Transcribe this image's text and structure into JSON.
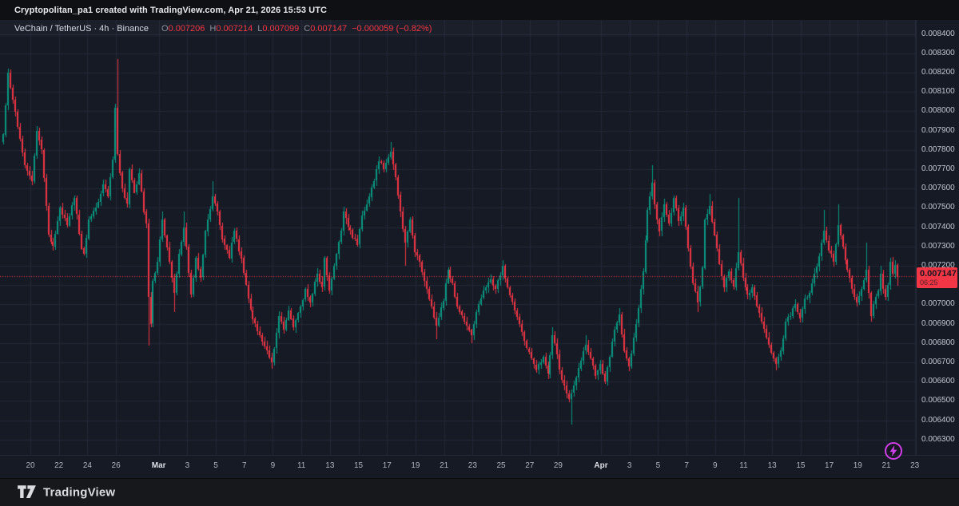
{
  "watermark": {
    "text": "Cryptopolitan_pa1 created with TradingView.com, Apr 21, 2026 15:53 UTC"
  },
  "legend": {
    "title": "VeChain / TetherUS · 4h · Binance",
    "ohlc": [
      [
        "O",
        "0.007206"
      ],
      [
        "H",
        "0.007214"
      ],
      [
        "L",
        "0.007099"
      ],
      [
        "C",
        "0.007147"
      ]
    ],
    "change": "−0.000059 (−0.82%)"
  },
  "price_tag": {
    "price": "0.007147",
    "countdown": "06:25"
  },
  "footer": {
    "brand": "TradingView"
  },
  "icons": {
    "event_marker": "lightning-bolt-icon",
    "brand_mark": "tradingview-logo"
  },
  "colors": {
    "background": "#161a25",
    "top_bar": "#0e1014",
    "footer_bar": "#17181c",
    "grid": "#222736",
    "up": "#089981",
    "down": "#f23645",
    "axis_text": "#c3c7d0",
    "event": "#cf3fe8"
  },
  "chart_data": {
    "type": "candlestick",
    "symbol": "VeChain / TetherUS",
    "interval": "4h",
    "exchange": "Binance",
    "current_candle": {
      "o": 0.007206,
      "h": 0.007214,
      "l": 0.007099,
      "c": 0.007147
    },
    "change_text": "−0.000059 (−0.82%)",
    "last_price": 0.007147,
    "countdown": "06:25",
    "candles_per_day": 6,
    "total_candles": 377,
    "ylim": [
      0.006221,
      0.008473
    ],
    "y_tick_step": 0.0001,
    "y_tick_labels": [
      "0.008400",
      "0.008300",
      "0.008200",
      "0.008100",
      "0.008000",
      "0.007900",
      "0.007800",
      "0.007700",
      "0.007600",
      "0.007500",
      "0.007400",
      "0.007300",
      "0.007200",
      "0.007100",
      "0.007000",
      "0.006900",
      "0.006800",
      "0.006700",
      "0.006600",
      "0.006500",
      "0.006400",
      "0.006300"
    ],
    "x_ticks": [
      {
        "label": "20",
        "day": 2
      },
      {
        "label": "22",
        "day": 4
      },
      {
        "label": "24",
        "day": 6
      },
      {
        "label": "26",
        "day": 8
      },
      {
        "label": "Mar",
        "day": 11
      },
      {
        "label": "3",
        "day": 13
      },
      {
        "label": "5",
        "day": 15
      },
      {
        "label": "7",
        "day": 17
      },
      {
        "label": "9",
        "day": 19
      },
      {
        "label": "11",
        "day": 21
      },
      {
        "label": "13",
        "day": 23
      },
      {
        "label": "15",
        "day": 25
      },
      {
        "label": "17",
        "day": 27
      },
      {
        "label": "19",
        "day": 29
      },
      {
        "label": "21",
        "day": 31
      },
      {
        "label": "23",
        "day": 33
      },
      {
        "label": "25",
        "day": 35
      },
      {
        "label": "27",
        "day": 37
      },
      {
        "label": "29",
        "day": 39
      },
      {
        "label": "Apr",
        "day": 42
      },
      {
        "label": "3",
        "day": 44
      },
      {
        "label": "5",
        "day": 46
      },
      {
        "label": "7",
        "day": 48
      },
      {
        "label": "9",
        "day": 50
      },
      {
        "label": "11",
        "day": 52
      },
      {
        "label": "13",
        "day": 54
      },
      {
        "label": "15",
        "day": 56
      },
      {
        "label": "17",
        "day": 58
      },
      {
        "label": "19",
        "day": 60
      },
      {
        "label": "21",
        "day": 62
      },
      {
        "label": "23",
        "day": 64
      }
    ],
    "close_keyframes": [
      [
        0,
        0.00788
      ],
      [
        2,
        0.0082
      ],
      [
        4,
        0.00806
      ],
      [
        6,
        0.00792
      ],
      [
        9,
        0.00772
      ],
      [
        12,
        0.00764
      ],
      [
        14,
        0.0079
      ],
      [
        16,
        0.0078
      ],
      [
        19,
        0.00736
      ],
      [
        21,
        0.0073
      ],
      [
        24,
        0.0075
      ],
      [
        27,
        0.00741
      ],
      [
        30,
        0.00755
      ],
      [
        33,
        0.00729
      ],
      [
        34,
        0.00726
      ],
      [
        36,
        0.00744
      ],
      [
        40,
        0.00753
      ],
      [
        42,
        0.00762
      ],
      [
        44,
        0.00756
      ],
      [
        46,
        0.00775
      ],
      [
        47,
        0.00802
      ],
      [
        48,
        0.00778
      ],
      [
        50,
        0.0076
      ],
      [
        52,
        0.00752
      ],
      [
        53,
        0.0077
      ],
      [
        55,
        0.00758
      ],
      [
        57,
        0.00768
      ],
      [
        59,
        0.00748
      ],
      [
        60,
        0.00742
      ],
      [
        61,
        0.00704
      ],
      [
        62,
        0.0069
      ],
      [
        63,
        0.00712
      ],
      [
        65,
        0.00722
      ],
      [
        67,
        0.00744
      ],
      [
        70,
        0.00722
      ],
      [
        72,
        0.00706
      ],
      [
        74,
        0.00726
      ],
      [
        76,
        0.0074
      ],
      [
        77,
        0.0073
      ],
      [
        79,
        0.00705
      ],
      [
        81,
        0.00724
      ],
      [
        83,
        0.00714
      ],
      [
        85,
        0.00738
      ],
      [
        88,
        0.00756
      ],
      [
        90,
        0.00748
      ],
      [
        92,
        0.00734
      ],
      [
        95,
        0.00724
      ],
      [
        97,
        0.00738
      ],
      [
        100,
        0.00724
      ],
      [
        102,
        0.0071
      ],
      [
        104,
        0.00697
      ],
      [
        106,
        0.0069
      ],
      [
        108,
        0.00684
      ],
      [
        111,
        0.00676
      ],
      [
        113,
        0.0067
      ],
      [
        116,
        0.00694
      ],
      [
        118,
        0.00687
      ],
      [
        120,
        0.00697
      ],
      [
        122,
        0.00688
      ],
      [
        125,
        0.00699
      ],
      [
        127,
        0.00708
      ],
      [
        129,
        0.00701
      ],
      [
        132,
        0.00716
      ],
      [
        134,
        0.00709
      ],
      [
        135,
        0.00724
      ],
      [
        137,
        0.00707
      ],
      [
        140,
        0.00726
      ],
      [
        142,
        0.00738
      ],
      [
        143,
        0.00748
      ],
      [
        145,
        0.0074
      ],
      [
        149,
        0.00731
      ],
      [
        151,
        0.00746
      ],
      [
        153,
        0.00752
      ],
      [
        156,
        0.00764
      ],
      [
        158,
        0.00774
      ],
      [
        160,
        0.0077
      ],
      [
        163,
        0.00779
      ],
      [
        165,
        0.00766
      ],
      [
        167,
        0.00748
      ],
      [
        169,
        0.00732
      ],
      [
        171,
        0.00744
      ],
      [
        173,
        0.00727
      ],
      [
        175,
        0.00722
      ],
      [
        177,
        0.00712
      ],
      [
        180,
        0.00699
      ],
      [
        182,
        0.00689
      ],
      [
        185,
        0.00702
      ],
      [
        187,
        0.00718
      ],
      [
        189,
        0.00711
      ],
      [
        191,
        0.00699
      ],
      [
        194,
        0.00691
      ],
      [
        197,
        0.00684
      ],
      [
        199,
        0.00696
      ],
      [
        202,
        0.00707
      ],
      [
        205,
        0.00713
      ],
      [
        207,
        0.00708
      ],
      [
        210,
        0.0072
      ],
      [
        212,
        0.00709
      ],
      [
        215,
        0.00697
      ],
      [
        217,
        0.0069
      ],
      [
        219,
        0.00681
      ],
      [
        222,
        0.00672
      ],
      [
        224,
        0.00666
      ],
      [
        227,
        0.00673
      ],
      [
        229,
        0.00664
      ],
      [
        231,
        0.00684
      ],
      [
        233,
        0.00674
      ],
      [
        234,
        0.00666
      ],
      [
        236,
        0.00658
      ],
      [
        238,
        0.00651
      ],
      [
        239,
        0.00654
      ],
      [
        241,
        0.00662
      ],
      [
        243,
        0.00671
      ],
      [
        245,
        0.00679
      ],
      [
        247,
        0.00672
      ],
      [
        249,
        0.00663
      ],
      [
        251,
        0.00669
      ],
      [
        253,
        0.0066
      ],
      [
        255,
        0.00673
      ],
      [
        257,
        0.00687
      ],
      [
        259,
        0.00695
      ],
      [
        261,
        0.00676
      ],
      [
        263,
        0.00668
      ],
      [
        265,
        0.00683
      ],
      [
        267,
        0.00698
      ],
      [
        269,
        0.00717
      ],
      [
        271,
        0.00749
      ],
      [
        273,
        0.00763
      ],
      [
        274,
        0.00752
      ],
      [
        276,
        0.00738
      ],
      [
        278,
        0.00752
      ],
      [
        280,
        0.00742
      ],
      [
        282,
        0.00755
      ],
      [
        284,
        0.00743
      ],
      [
        286,
        0.0075
      ],
      [
        288,
        0.00729
      ],
      [
        290,
        0.00711
      ],
      [
        292,
        0.00701
      ],
      [
        294,
        0.00719
      ],
      [
        295,
        0.00744
      ],
      [
        297,
        0.00751
      ],
      [
        299,
        0.00736
      ],
      [
        301,
        0.00721
      ],
      [
        303,
        0.00709
      ],
      [
        305,
        0.00717
      ],
      [
        307,
        0.00709
      ],
      [
        309,
        0.00727
      ],
      [
        311,
        0.00714
      ],
      [
        313,
        0.00705
      ],
      [
        315,
        0.00709
      ],
      [
        317,
        0.00699
      ],
      [
        319,
        0.00691
      ],
      [
        321,
        0.00683
      ],
      [
        323,
        0.00675
      ],
      [
        325,
        0.00669
      ],
      [
        327,
        0.00676
      ],
      [
        329,
        0.00691
      ],
      [
        331,
        0.00694
      ],
      [
        333,
        0.007
      ],
      [
        335,
        0.00693
      ],
      [
        337,
        0.00703
      ],
      [
        339,
        0.00706
      ],
      [
        341,
        0.00716
      ],
      [
        343,
        0.00725
      ],
      [
        345,
        0.00738
      ],
      [
        347,
        0.00728
      ],
      [
        349,
        0.00722
      ],
      [
        351,
        0.00741
      ],
      [
        353,
        0.0073
      ],
      [
        355,
        0.00718
      ],
      [
        357,
        0.00708
      ],
      [
        359,
        0.00701
      ],
      [
        361,
        0.00708
      ],
      [
        363,
        0.00718
      ],
      [
        364,
        0.00706
      ],
      [
        365,
        0.00694
      ],
      [
        366,
        0.007
      ],
      [
        368,
        0.00707
      ],
      [
        369,
        0.00716
      ],
      [
        370,
        0.00708
      ],
      [
        371,
        0.00704
      ],
      [
        372,
        0.0071
      ],
      [
        373,
        0.00722
      ],
      [
        374,
        0.00716
      ],
      [
        375,
        0.007206
      ],
      [
        376,
        0.007147
      ]
    ],
    "wick_events": [
      [
        48,
        "H",
        0.00827
      ],
      [
        61,
        "L",
        0.00679
      ],
      [
        67,
        "H",
        0.00748
      ],
      [
        72,
        "L",
        0.00696
      ],
      [
        76,
        "H",
        0.00748
      ],
      [
        88,
        "H",
        0.00764
      ],
      [
        113,
        "L",
        0.00667
      ],
      [
        163,
        "H",
        0.00784
      ],
      [
        169,
        "L",
        0.0072
      ],
      [
        182,
        "L",
        0.00682
      ],
      [
        197,
        "L",
        0.0068
      ],
      [
        210,
        "H",
        0.00723
      ],
      [
        231,
        "H",
        0.00688
      ],
      [
        239,
        "L",
        0.00638
      ],
      [
        245,
        "H",
        0.00684
      ],
      [
        259,
        "H",
        0.00698
      ],
      [
        273,
        "H",
        0.00772
      ],
      [
        292,
        "L",
        0.00696
      ],
      [
        297,
        "H",
        0.00757
      ],
      [
        309,
        "H",
        0.00755
      ],
      [
        325,
        "L",
        0.00666
      ],
      [
        345,
        "H",
        0.00749
      ],
      [
        351,
        "H",
        0.00752
      ],
      [
        363,
        "H",
        0.00732
      ],
      [
        365,
        "L",
        0.00691
      ],
      [
        369,
        "H",
        0.0072
      ],
      [
        373,
        "H",
        0.00724
      ]
    ]
  }
}
